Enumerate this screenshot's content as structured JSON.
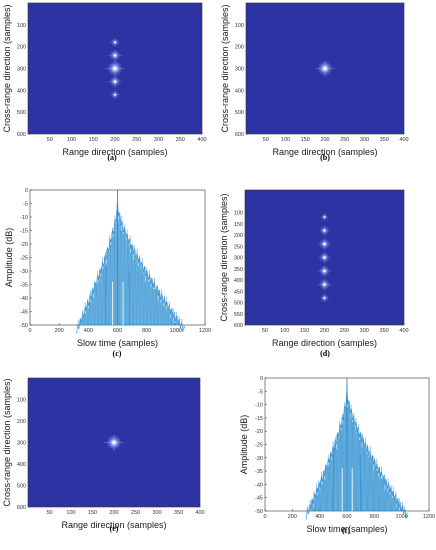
{
  "colors": {
    "background": "#2e33a4",
    "glow": "#8ea8ff",
    "core": "#ffffff",
    "amp_line": "#2f8fd0",
    "axis": "#333333"
  },
  "chart_data": [
    {
      "panel": "a",
      "caption": "(a)",
      "type": "heatmap",
      "xlabel": "Range direction (samples)",
      "ylabel": "Cross-range direction (samples)",
      "xlim": [
        0,
        400
      ],
      "ylim": [
        0,
        600
      ],
      "xticks": [
        "50",
        "100",
        "150",
        "200",
        "250",
        "300",
        "350",
        "400"
      ],
      "yticks": [
        "100",
        "200",
        "300",
        "400",
        "500",
        "600"
      ],
      "points": [
        {
          "x": 200,
          "y": 180,
          "intensity": 0.35
        },
        {
          "x": 200,
          "y": 240,
          "intensity": 0.6
        },
        {
          "x": 200,
          "y": 300,
          "intensity": 1.0
        },
        {
          "x": 200,
          "y": 360,
          "intensity": 0.6
        },
        {
          "x": 200,
          "y": 420,
          "intensity": 0.35
        }
      ]
    },
    {
      "panel": "b",
      "caption": "(b)",
      "type": "heatmap",
      "xlabel": "Range direction (samples)",
      "ylabel": "Cross-range direction (samples)",
      "xlim": [
        0,
        400
      ],
      "ylim": [
        0,
        600
      ],
      "xticks": [
        "50",
        "100",
        "150",
        "200",
        "250",
        "300",
        "350",
        "400"
      ],
      "yticks": [
        "100",
        "200",
        "300",
        "400",
        "500",
        "600"
      ],
      "points": [
        {
          "x": 200,
          "y": 300,
          "intensity": 1.0
        }
      ]
    },
    {
      "panel": "c",
      "caption": "(c)",
      "type": "line",
      "xlabel": "Slow time (samples)",
      "ylabel": "Amplitude (dB)",
      "xlim": [
        0,
        1200
      ],
      "ylim": [
        -50,
        0
      ],
      "xticks": [
        "0",
        "200",
        "400",
        "600",
        "800",
        "1000",
        "1200"
      ],
      "yticks": [
        "0",
        "-5",
        "-10",
        "-15",
        "-20",
        "-25",
        "-30",
        "-35",
        "-40",
        "-45",
        "-50"
      ],
      "series": [
        {
          "peak_x": 600,
          "peak_y": 0,
          "start_x": 320,
          "end_x": 1060,
          "floor_y": -50,
          "side_spikes": [
            {
              "x": 520,
              "y": -28
            },
            {
              "x": 680,
              "y": -30
            }
          ]
        }
      ]
    },
    {
      "panel": "d",
      "caption": "(d)",
      "type": "heatmap",
      "xlabel": "Range direction (samples)",
      "ylabel": "Cross-range direction (samples)",
      "xlim": [
        0,
        400
      ],
      "ylim": [
        0,
        600
      ],
      "xticks": [
        "50",
        "100",
        "150",
        "200",
        "250",
        "300",
        "350",
        "400"
      ],
      "yticks": [
        "100",
        "150",
        "200",
        "250",
        "300",
        "350",
        "400",
        "450",
        "500",
        "550",
        "600"
      ],
      "points": [
        {
          "x": 200,
          "y": 120,
          "intensity": 0.25
        },
        {
          "x": 200,
          "y": 180,
          "intensity": 0.45
        },
        {
          "x": 200,
          "y": 240,
          "intensity": 0.6
        },
        {
          "x": 200,
          "y": 300,
          "intensity": 0.55
        },
        {
          "x": 200,
          "y": 360,
          "intensity": 0.6
        },
        {
          "x": 200,
          "y": 420,
          "intensity": 0.6
        },
        {
          "x": 200,
          "y": 480,
          "intensity": 0.35
        }
      ]
    },
    {
      "panel": "e",
      "caption": "(e)",
      "type": "heatmap",
      "xlabel": "Range direction (samples)",
      "ylabel": "Cross-range direction (samples)",
      "xlim": [
        0,
        400
      ],
      "ylim": [
        0,
        600
      ],
      "xticks": [
        "50",
        "100",
        "150",
        "200",
        "250",
        "300",
        "350",
        "400"
      ],
      "yticks": [
        "100",
        "200",
        "300",
        "400",
        "500",
        "600"
      ],
      "points": [
        {
          "x": 200,
          "y": 300,
          "intensity": 1.0
        }
      ]
    },
    {
      "panel": "f",
      "caption": "(f)",
      "type": "line",
      "xlabel": "Slow time (samples)",
      "ylabel": "Amplitude (dB)",
      "xlim": [
        0,
        1200
      ],
      "ylim": [
        -50,
        0
      ],
      "xticks": [
        "0",
        "200",
        "400",
        "600",
        "800",
        "1000",
        "1200"
      ],
      "yticks": [
        "0",
        "-5",
        "-10",
        "-15",
        "-20",
        "-25",
        "-30",
        "-35",
        "-40",
        "-45",
        "-50"
      ],
      "series": [
        {
          "peak_x": 600,
          "peak_y": 0,
          "start_x": 300,
          "end_x": 1040,
          "floor_y": -50,
          "side_spikes": [
            {
              "x": 500,
              "y": -26
            },
            {
              "x": 700,
              "y": -29
            }
          ]
        }
      ]
    }
  ]
}
